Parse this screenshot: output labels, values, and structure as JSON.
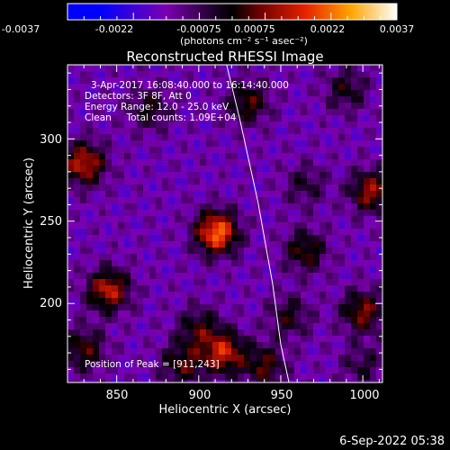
{
  "chart_data": {
    "type": "heatmap",
    "title": "Reconstructed RHESSI Image",
    "xlabel": "Heliocentric X (arcsec)",
    "ylabel": "Heliocentric Y (arcsec)",
    "xlim": [
      820,
      1012
    ],
    "ylim": [
      152,
      345
    ],
    "xticks": [
      850,
      900,
      950,
      1000
    ],
    "yticks": [
      200,
      250,
      300
    ],
    "colorbar": {
      "ticks": [
        "-0.0037",
        "-0.0022",
        "-0.00075",
        "0.00075",
        "0.0022",
        "0.0037"
      ],
      "range": [
        -0.0037,
        0.0037
      ],
      "unit_label": "(photons cm⁻² s⁻¹ asec⁻²)"
    },
    "annotations": {
      "time_range": "3-Apr-2017 16:08:40.000 to 16:14:40.000",
      "detectors": "Detectors: 3F 8F, Att 0",
      "energy": "Energy Range: 12.0 - 25.0 keV",
      "clean": "Clean     Total counts: 1.09E+04",
      "peak": "Position of Peak = [911,243]"
    },
    "peak_position": [
      911,
      243
    ],
    "sources": [
      {
        "x": 911,
        "y": 243,
        "flux": 0.0037
      },
      {
        "x": 830,
        "y": 285,
        "flux": 0.0028
      },
      {
        "x": 870,
        "y": 318,
        "flux": 0.0014
      },
      {
        "x": 930,
        "y": 322,
        "flux": 0.0018
      },
      {
        "x": 990,
        "y": 330,
        "flux": 0.0014
      },
      {
        "x": 1005,
        "y": 268,
        "flux": 0.0024
      },
      {
        "x": 965,
        "y": 232,
        "flux": 0.0018
      },
      {
        "x": 965,
        "y": 272,
        "flux": 0.0011
      },
      {
        "x": 1000,
        "y": 195,
        "flux": 0.0022
      },
      {
        "x": 955,
        "y": 192,
        "flux": 0.0014
      },
      {
        "x": 845,
        "y": 208,
        "flux": 0.0028
      },
      {
        "x": 830,
        "y": 172,
        "flux": 0.0018
      },
      {
        "x": 900,
        "y": 185,
        "flux": 0.0016
      },
      {
        "x": 915,
        "y": 170,
        "flux": 0.0028
      },
      {
        "x": 890,
        "y": 163,
        "flux": 0.0018
      },
      {
        "x": 940,
        "y": 162,
        "flux": 0.0018
      },
      {
        "x": 1000,
        "y": 162,
        "flux": 0.0011
      }
    ],
    "limb": [
      [
        917,
        345
      ],
      [
        925,
        312
      ],
      [
        936,
        262
      ],
      [
        945,
        212
      ],
      [
        950,
        175
      ],
      [
        955,
        152
      ]
    ]
  },
  "footer": {
    "date": "6-Sep-2022 05:38"
  }
}
